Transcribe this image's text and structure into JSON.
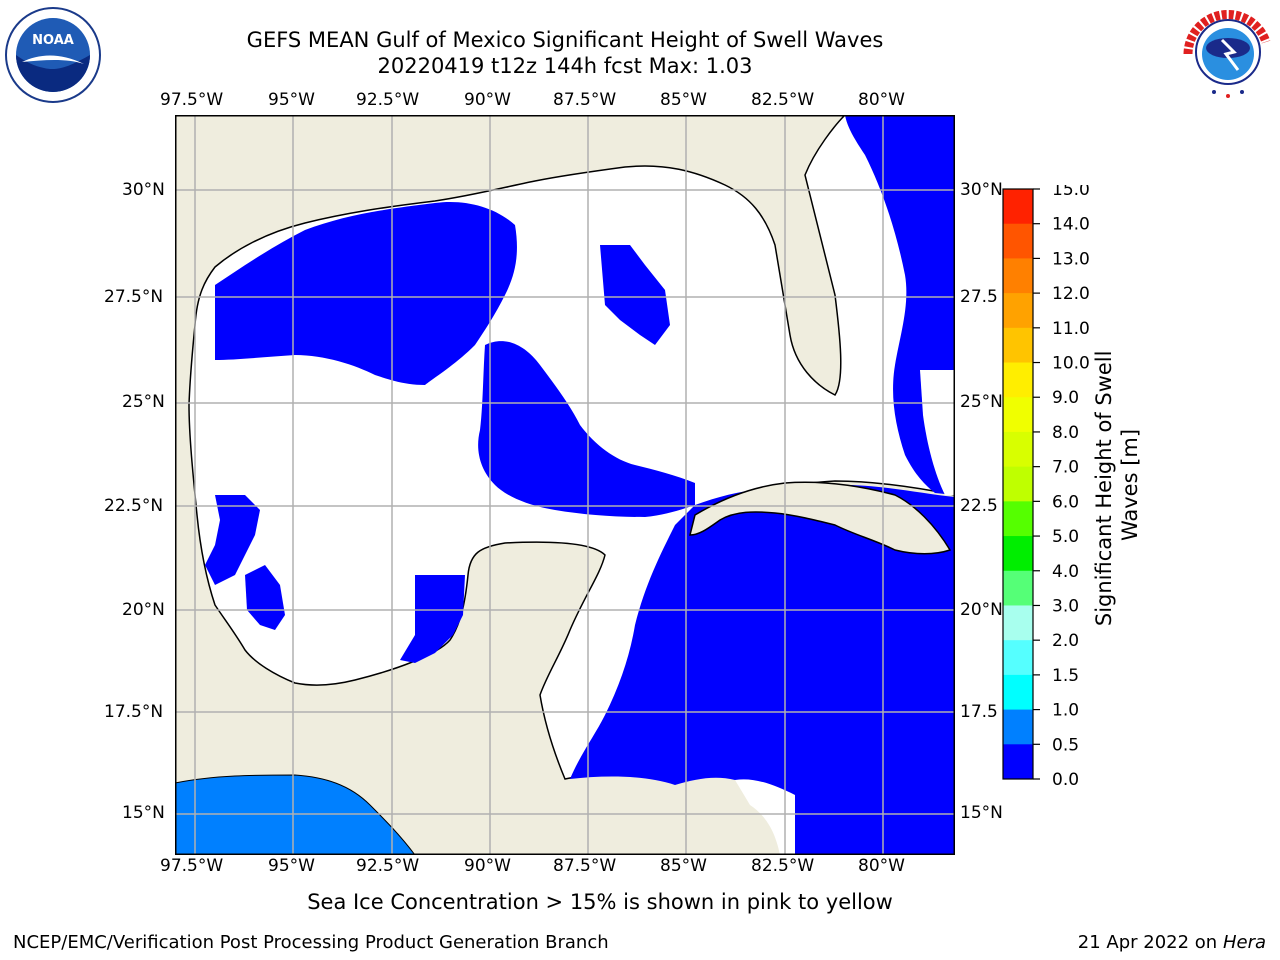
{
  "header": {
    "title_line1": "GEFS MEAN Gulf of Mexico Significant Height of Swell Waves",
    "title_line2": "20220419 t12z 144h fcst   Max: 1.03"
  },
  "logos": {
    "left": "noaa-logo",
    "right": "nws-logo"
  },
  "map": {
    "lon_labels": [
      "97.5°W",
      "95°W",
      "92.5°W",
      "90°W",
      "87.5°W",
      "85°W",
      "82.5°W",
      "80°W"
    ],
    "lat_labels_left": [
      "30°N",
      "27.5°N",
      "25°N",
      "22.5°N",
      "20°N",
      "17.5°N",
      "15°N"
    ],
    "lat_labels_right": [
      "30°N",
      "27.5",
      "25°N",
      "22.5",
      "20°N",
      "17.5",
      "15°N"
    ],
    "extent": {
      "lon_min": -98,
      "lon_max": -78.2,
      "lat_min": 14,
      "lat_max": 31.8
    },
    "colors": {
      "land": "#efedde",
      "ocean_zero": "#ffffff",
      "wave_low": "#0000ff",
      "wave_mid": "#0080ff",
      "gridline": "#b0b0b0"
    }
  },
  "colorbar": {
    "label": "Significant Height of Swell Waves [m]",
    "ticks": [
      "15.0",
      "14.0",
      "13.0",
      "12.0",
      "11.0",
      "10.0",
      "9.0",
      "8.0",
      "7.0",
      "6.0",
      "5.0",
      "4.0",
      "3.0",
      "2.0",
      "1.5",
      "1.0",
      "0.5",
      "0.0"
    ],
    "colors": [
      "#ff0000",
      "#ff2200",
      "#ff5500",
      "#ff8000",
      "#ffa200",
      "#ffc400",
      "#ffee00",
      "#f0ff00",
      "#d8ff00",
      "#bfff00",
      "#55ff00",
      "#00ee00",
      "#55ff77",
      "#a8ffee",
      "#55ffff",
      "#00ffff",
      "#0080ff",
      "#0000ff"
    ]
  },
  "footer": {
    "note": "Sea Ice Concentration > 15% is shown in pink to yellow",
    "credit": "NCEP/EMC/Verification Post Processing Product Generation Branch",
    "date": "21 Apr 2022 on ",
    "machine": "Hera"
  }
}
